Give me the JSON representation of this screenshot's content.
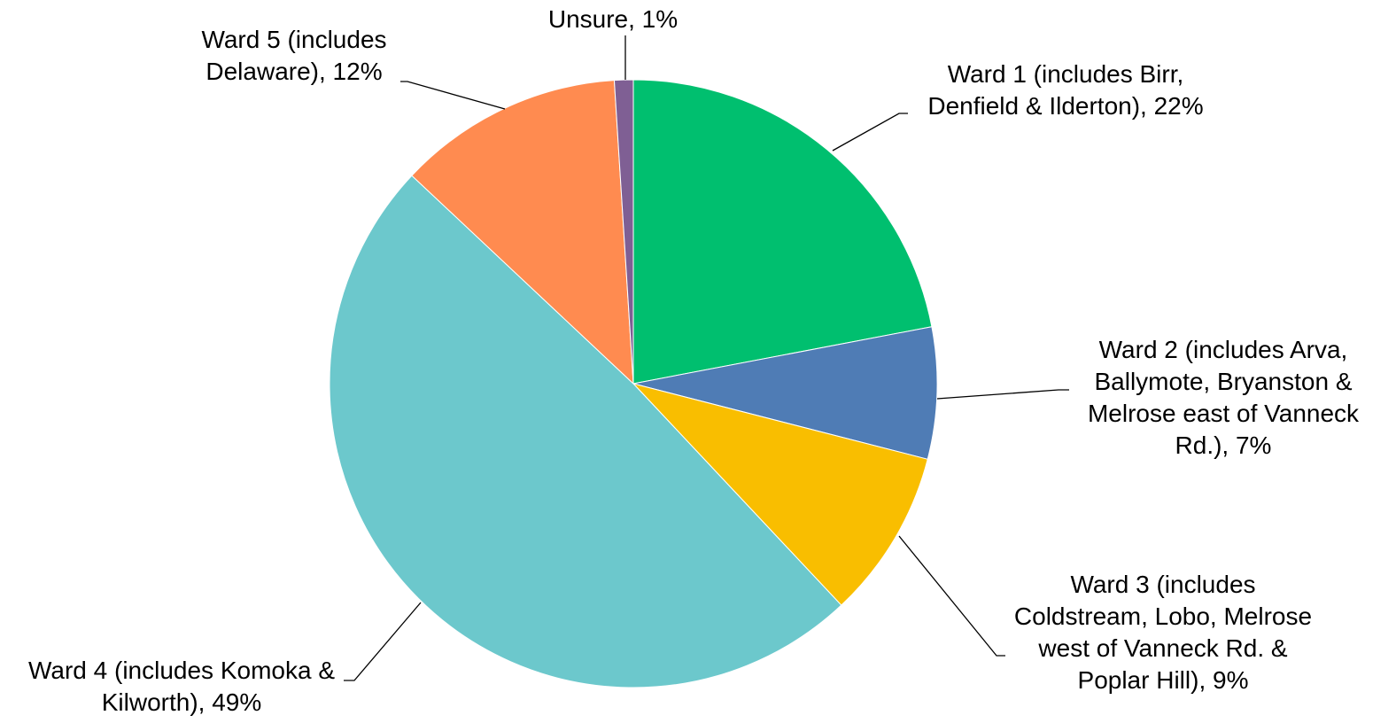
{
  "chart_data": {
    "type": "pie",
    "values": [
      22,
      7,
      9,
      49,
      12,
      1
    ],
    "value_labels": [
      "Ward 1 (includes Birr, Denfield & Ilderton), 22%",
      "Ward 2 (includes Arva, Ballymote, Bryanston & Melrose east of Vanneck Rd.), 7%",
      "Ward 3 (includes Coldstream, Lobo, Melrose west of Vanneck Rd. & Poplar Hill), 9%",
      "Ward 4 (includes Komoka & Kilworth), 49%",
      "Ward 5 (includes Delaware), 12%",
      "Unsure, 1%"
    ],
    "colors": [
      "#00bf6f",
      "#4f7cb5",
      "#f9be00",
      "#6cc8cc",
      "#ff8b50",
      "#7f5f94"
    ]
  }
}
